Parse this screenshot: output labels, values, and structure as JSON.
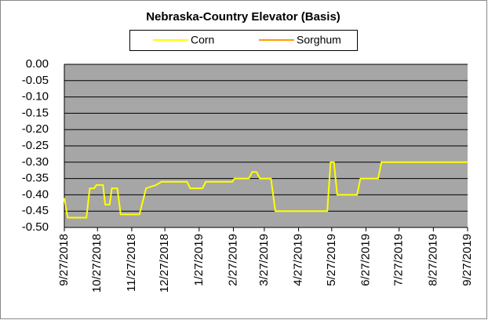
{
  "chart_data": {
    "type": "line",
    "title": "Nebraska-Country Elevator (Basis)",
    "x": [
      "9/27/2018",
      "9/30/2018",
      "10/17/2018",
      "10/20/2018",
      "10/24/2018",
      "10/26/2018",
      "11/1/2018",
      "11/3/2018",
      "11/7/2018",
      "11/9/2018",
      "11/14/2018",
      "11/17/2018",
      "12/4/2018",
      "12/10/2018",
      "12/19/2018",
      "12/24/2018",
      "1/16/2019",
      "1/19/2019",
      "1/30/2019",
      "2/2/2019",
      "2/26/2019",
      "2/28/2019",
      "3/13/2019",
      "3/16/2019",
      "3/20/2019",
      "3/23/2019",
      "4/2/2019",
      "4/6/2019",
      "5/23/2019",
      "5/26/2019",
      "5/29/2019",
      "6/1/2019",
      "6/19/2019",
      "6/22/2019",
      "7/8/2019",
      "7/11/2019",
      "9/27/2019"
    ],
    "series": [
      {
        "name": "Corn",
        "color": "#ffff00",
        "values": [
          -0.41,
          -0.47,
          -0.47,
          -0.38,
          -0.38,
          -0.37,
          -0.37,
          -0.43,
          -0.43,
          -0.38,
          -0.38,
          -0.46,
          -0.46,
          -0.38,
          -0.37,
          -0.36,
          -0.36,
          -0.38,
          -0.38,
          -0.36,
          -0.36,
          -0.35,
          -0.35,
          -0.33,
          -0.33,
          -0.35,
          -0.35,
          -0.45,
          -0.45,
          -0.3,
          -0.3,
          -0.4,
          -0.4,
          -0.35,
          -0.35,
          -0.3,
          -0.3
        ]
      },
      {
        "name": "Sorghum",
        "color": "#ff9900",
        "values": [
          null,
          null,
          null,
          null,
          null,
          null,
          null,
          null,
          null,
          null,
          null,
          null,
          null,
          null,
          null,
          null,
          null,
          null,
          null,
          null,
          null,
          null,
          null,
          null,
          null,
          null,
          null,
          null,
          null,
          null,
          null,
          null,
          null,
          null,
          null,
          null,
          null
        ]
      }
    ],
    "xlim": [
      "9/27/2018",
      "9/27/2019"
    ],
    "xticks": [
      "9/27/2018",
      "10/27/2018",
      "11/27/2018",
      "12/27/2018",
      "1/27/2019",
      "2/27/2019",
      "3/27/2019",
      "4/27/2019",
      "5/27/2019",
      "6/27/2019",
      "7/27/2019",
      "8/27/2019",
      "9/27/2019"
    ],
    "ylim": [
      -0.5,
      0
    ],
    "yticks": [
      {
        "value": 0,
        "label": "0.00"
      },
      {
        "value": -0.05,
        "label": "-0.05"
      },
      {
        "value": -0.1,
        "label": "-0.10"
      },
      {
        "value": -0.15,
        "label": "-0.15"
      },
      {
        "value": -0.2,
        "label": "-0.20"
      },
      {
        "value": -0.25,
        "label": "-0.25"
      },
      {
        "value": -0.3,
        "label": "-0.30"
      },
      {
        "value": -0.35,
        "label": "-0.35"
      },
      {
        "value": -0.4,
        "label": "-0.40"
      },
      {
        "value": -0.45,
        "label": "-0.45"
      },
      {
        "value": -0.5,
        "label": "-0.50"
      }
    ],
    "grid": true
  }
}
